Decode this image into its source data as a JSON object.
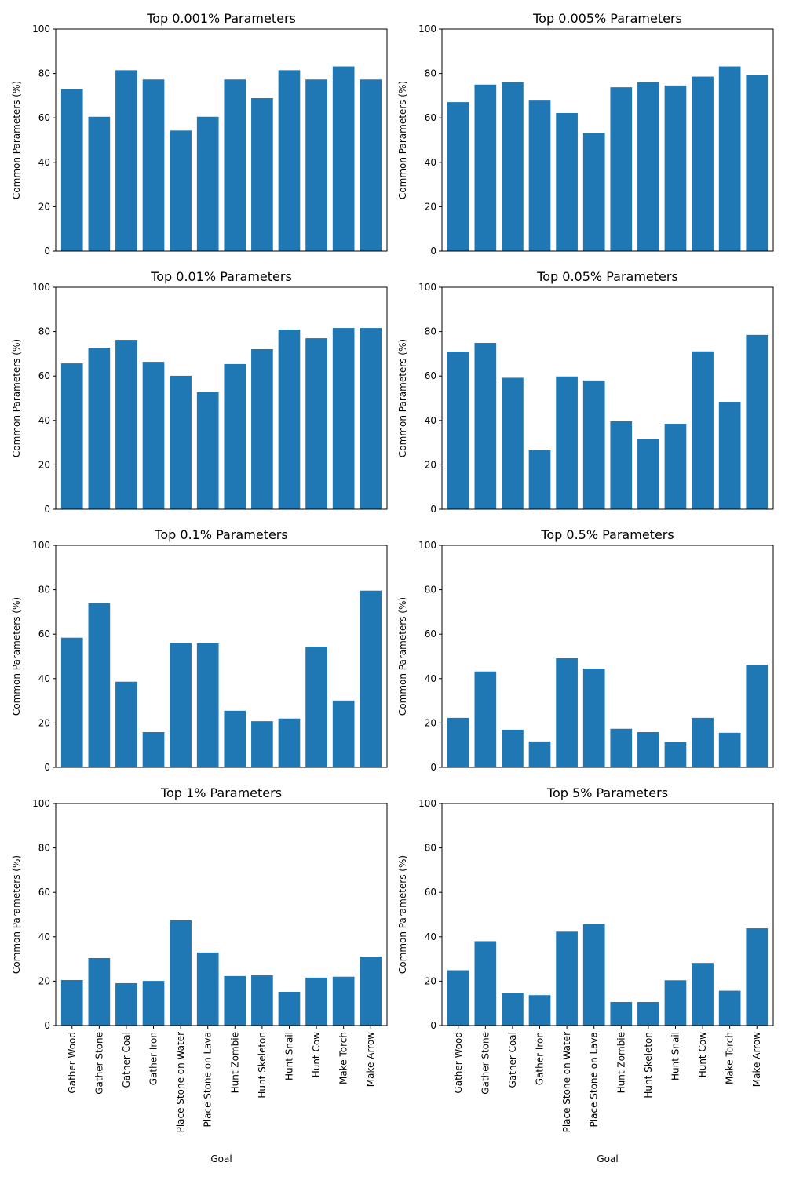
{
  "chart_data": [
    {
      "type": "bar",
      "title": "Top 0.001% Parameters",
      "ylabel": "Common Parameters (%)",
      "xlabel": "",
      "ylim": [
        0,
        100
      ],
      "yticks": [
        0,
        20,
        40,
        60,
        80,
        100
      ],
      "show_xticklabels": false,
      "categories": [
        "Gather Wood",
        "Gather Stone",
        "Gather Coal",
        "Gather Iron",
        "Place Stone on Water",
        "Place Stone on Lava",
        "Hunt Zombie",
        "Hunt Skeleton",
        "Hunt Snail",
        "Hunt Cow",
        "Make Torch",
        "Make Arrow"
      ],
      "values": [
        73,
        60.5,
        81.5,
        77.3,
        54.3,
        60.5,
        77.3,
        68.9,
        81.5,
        77.3,
        83.2,
        77.3
      ]
    },
    {
      "type": "bar",
      "title": "Top 0.005% Parameters",
      "ylabel": "Common Parameters (%)",
      "xlabel": "",
      "ylim": [
        0,
        100
      ],
      "yticks": [
        0,
        20,
        40,
        60,
        80,
        100
      ],
      "show_xticklabels": false,
      "categories": [
        "Gather Wood",
        "Gather Stone",
        "Gather Coal",
        "Gather Iron",
        "Place Stone on Water",
        "Place Stone on Lava",
        "Hunt Zombie",
        "Hunt Skeleton",
        "Hunt Snail",
        "Hunt Cow",
        "Make Torch",
        "Make Arrow"
      ],
      "values": [
        67.1,
        75,
        76.1,
        67.8,
        62.2,
        53.2,
        73.8,
        76.1,
        74.6,
        78.6,
        83.2,
        79.3
      ]
    },
    {
      "type": "bar",
      "title": "Top 0.01% Parameters",
      "ylabel": "Common Parameters (%)",
      "xlabel": "",
      "ylim": [
        0,
        100
      ],
      "yticks": [
        0,
        20,
        40,
        60,
        80,
        100
      ],
      "show_xticklabels": false,
      "categories": [
        "Gather Wood",
        "Gather Stone",
        "Gather Coal",
        "Gather Iron",
        "Place Stone on Water",
        "Place Stone on Lava",
        "Hunt Zombie",
        "Hunt Skeleton",
        "Hunt Snail",
        "Hunt Cow",
        "Make Torch",
        "Make Arrow"
      ],
      "values": [
        65.7,
        72.8,
        76.3,
        66.4,
        60.1,
        52.7,
        65.4,
        72.1,
        80.9,
        77,
        81.6,
        81.6
      ]
    },
    {
      "type": "bar",
      "title": "Top 0.05% Parameters",
      "ylabel": "Common Parameters (%)",
      "xlabel": "",
      "ylim": [
        0,
        100
      ],
      "yticks": [
        0,
        20,
        40,
        60,
        80,
        100
      ],
      "show_xticklabels": false,
      "categories": [
        "Gather Wood",
        "Gather Stone",
        "Gather Coal",
        "Gather Iron",
        "Place Stone on Water",
        "Place Stone on Lava",
        "Hunt Zombie",
        "Hunt Skeleton",
        "Hunt Snail",
        "Hunt Cow",
        "Make Torch",
        "Make Arrow"
      ],
      "values": [
        71,
        74.9,
        59.2,
        26.5,
        59.8,
        58,
        39.6,
        31.6,
        38.5,
        71.1,
        48.4,
        78.5
      ]
    },
    {
      "type": "bar",
      "title": "Top 0.1% Parameters",
      "ylabel": "Common Parameters (%)",
      "xlabel": "",
      "ylim": [
        0,
        100
      ],
      "yticks": [
        0,
        20,
        40,
        60,
        80,
        100
      ],
      "show_xticklabels": false,
      "categories": [
        "Gather Wood",
        "Gather Stone",
        "Gather Coal",
        "Gather Iron",
        "Place Stone on Water",
        "Place Stone on Lava",
        "Hunt Zombie",
        "Hunt Skeleton",
        "Hunt Snail",
        "Hunt Cow",
        "Make Torch",
        "Make Arrow"
      ],
      "values": [
        58.4,
        74,
        38.6,
        15.9,
        55.9,
        55.9,
        25.5,
        20.8,
        22,
        54.4,
        30.1,
        79.6
      ]
    },
    {
      "type": "bar",
      "title": "Top 0.5% Parameters",
      "ylabel": "Common Parameters (%)",
      "xlabel": "",
      "ylim": [
        0,
        100
      ],
      "yticks": [
        0,
        20,
        40,
        60,
        80,
        100
      ],
      "show_xticklabels": false,
      "categories": [
        "Gather Wood",
        "Gather Stone",
        "Gather Coal",
        "Gather Iron",
        "Place Stone on Water",
        "Place Stone on Lava",
        "Hunt Zombie",
        "Hunt Skeleton",
        "Hunt Snail",
        "Hunt Cow",
        "Make Torch",
        "Make Arrow"
      ],
      "values": [
        22.3,
        43.2,
        17,
        11.7,
        49.2,
        44.5,
        17.4,
        15.9,
        11.3,
        22.3,
        15.6,
        46.3
      ]
    },
    {
      "type": "bar",
      "title": "Top 1% Parameters",
      "ylabel": "Common Parameters (%)",
      "xlabel": "Goal",
      "ylim": [
        0,
        100
      ],
      "yticks": [
        0,
        20,
        40,
        60,
        80,
        100
      ],
      "show_xticklabels": true,
      "categories": [
        "Gather Wood",
        "Gather Stone",
        "Gather Coal",
        "Gather Iron",
        "Place Stone on Water",
        "Place Stone on Lava",
        "Hunt Zombie",
        "Hunt Skeleton",
        "Hunt Snail",
        "Hunt Cow",
        "Make Torch",
        "Make Arrow"
      ],
      "values": [
        20.5,
        30.4,
        19.1,
        20.1,
        47.4,
        32.9,
        22.3,
        22.6,
        15.2,
        21.6,
        22,
        31.1
      ]
    },
    {
      "type": "bar",
      "title": "Top 5% Parameters",
      "ylabel": "Common Parameters (%)",
      "xlabel": "Goal",
      "ylim": [
        0,
        100
      ],
      "yticks": [
        0,
        20,
        40,
        60,
        80,
        100
      ],
      "show_xticklabels": true,
      "categories": [
        "Gather Wood",
        "Gather Stone",
        "Gather Coal",
        "Gather Iron",
        "Place Stone on Water",
        "Place Stone on Lava",
        "Hunt Zombie",
        "Hunt Skeleton",
        "Hunt Snail",
        "Hunt Cow",
        "Make Torch",
        "Make Arrow"
      ],
      "values": [
        24.9,
        38,
        14.7,
        13.7,
        42.3,
        45.7,
        10.6,
        10.6,
        20.4,
        28.2,
        15.7,
        43.8
      ]
    }
  ],
  "style": {
    "bar_color": "#1f77b4"
  }
}
